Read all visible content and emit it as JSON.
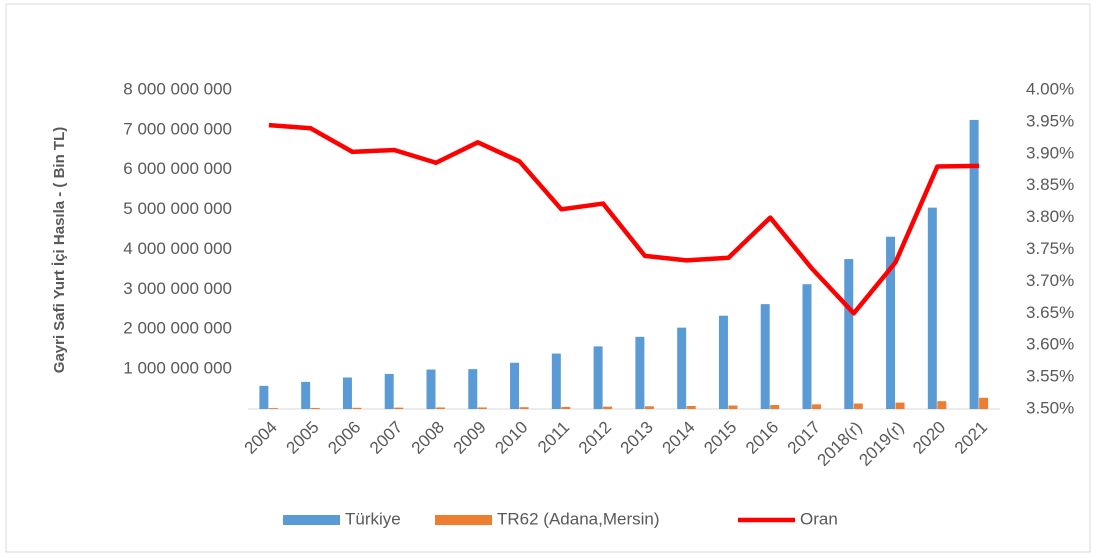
{
  "chart_data": {
    "type": "bar",
    "y_label": "Gayri Safi Yurt İçi Hasıla - ( Bin TL)",
    "categories": [
      "2004",
      "2005",
      "2006",
      "2007",
      "2008",
      "2009",
      "2010",
      "2011",
      "2012",
      "2013",
      "2014",
      "2015",
      "2016",
      "2017",
      "2018(r)",
      "2019(r)",
      "2020",
      "2021"
    ],
    "series": [
      {
        "name": "Türkiye",
        "color": "#5b9bd5",
        "type": "bar",
        "values": [
          580000000,
          680000000,
          790000000,
          880000000,
          990000000,
          1000000000,
          1160000000,
          1390000000,
          1570000000,
          1810000000,
          2040000000,
          2340000000,
          2630000000,
          3130000000,
          3760000000,
          4320000000,
          5050000000,
          7250000000
        ]
      },
      {
        "name": "TR62 (Adana,Mersin)",
        "color": "#ed7d31",
        "type": "bar",
        "values": [
          22900000,
          26800000,
          30800000,
          34400000,
          38500000,
          39200000,
          45100000,
          53000000,
          60000000,
          67700000,
          76200000,
          87400000,
          99900000,
          116400000,
          137200000,
          161100000,
          196000000,
          281400000
        ]
      },
      {
        "name": "Oran",
        "color": "#ff0000",
        "type": "line",
        "axis": "y2",
        "values": [
          3.945,
          3.94,
          3.903,
          3.906,
          3.886,
          3.918,
          3.888,
          3.813,
          3.822,
          3.74,
          3.733,
          3.737,
          3.8,
          3.72,
          3.65,
          3.73,
          3.88,
          3.881
        ]
      }
    ],
    "ylim": [
      0,
      8000000000
    ],
    "yticks": [
      {
        "value": 1000000000,
        "label": "1 000 000 000"
      },
      {
        "value": 2000000000,
        "label": "2 000 000 000"
      },
      {
        "value": 3000000000,
        "label": "3 000 000 000"
      },
      {
        "value": 4000000000,
        "label": "4 000 000 000"
      },
      {
        "value": 5000000000,
        "label": "5 000 000 000"
      },
      {
        "value": 6000000000,
        "label": "6 000 000 000"
      },
      {
        "value": 7000000000,
        "label": "7 000 000 000"
      },
      {
        "value": 8000000000,
        "label": "8 000 000 000"
      }
    ],
    "y2lim": [
      3.5,
      4.0
    ],
    "y2ticks": [
      {
        "value": 3.5,
        "label": "3.50%"
      },
      {
        "value": 3.55,
        "label": "3.55%"
      },
      {
        "value": 3.6,
        "label": "3.60%"
      },
      {
        "value": 3.65,
        "label": "3.65%"
      },
      {
        "value": 3.7,
        "label": "3.70%"
      },
      {
        "value": 3.75,
        "label": "3.75%"
      },
      {
        "value": 3.8,
        "label": "3.80%"
      },
      {
        "value": 3.85,
        "label": "3.85%"
      },
      {
        "value": 3.9,
        "label": "3.90%"
      },
      {
        "value": 3.95,
        "label": "3.95%"
      },
      {
        "value": 4.0,
        "label": "4.00%"
      }
    ],
    "legend": "bottom"
  }
}
